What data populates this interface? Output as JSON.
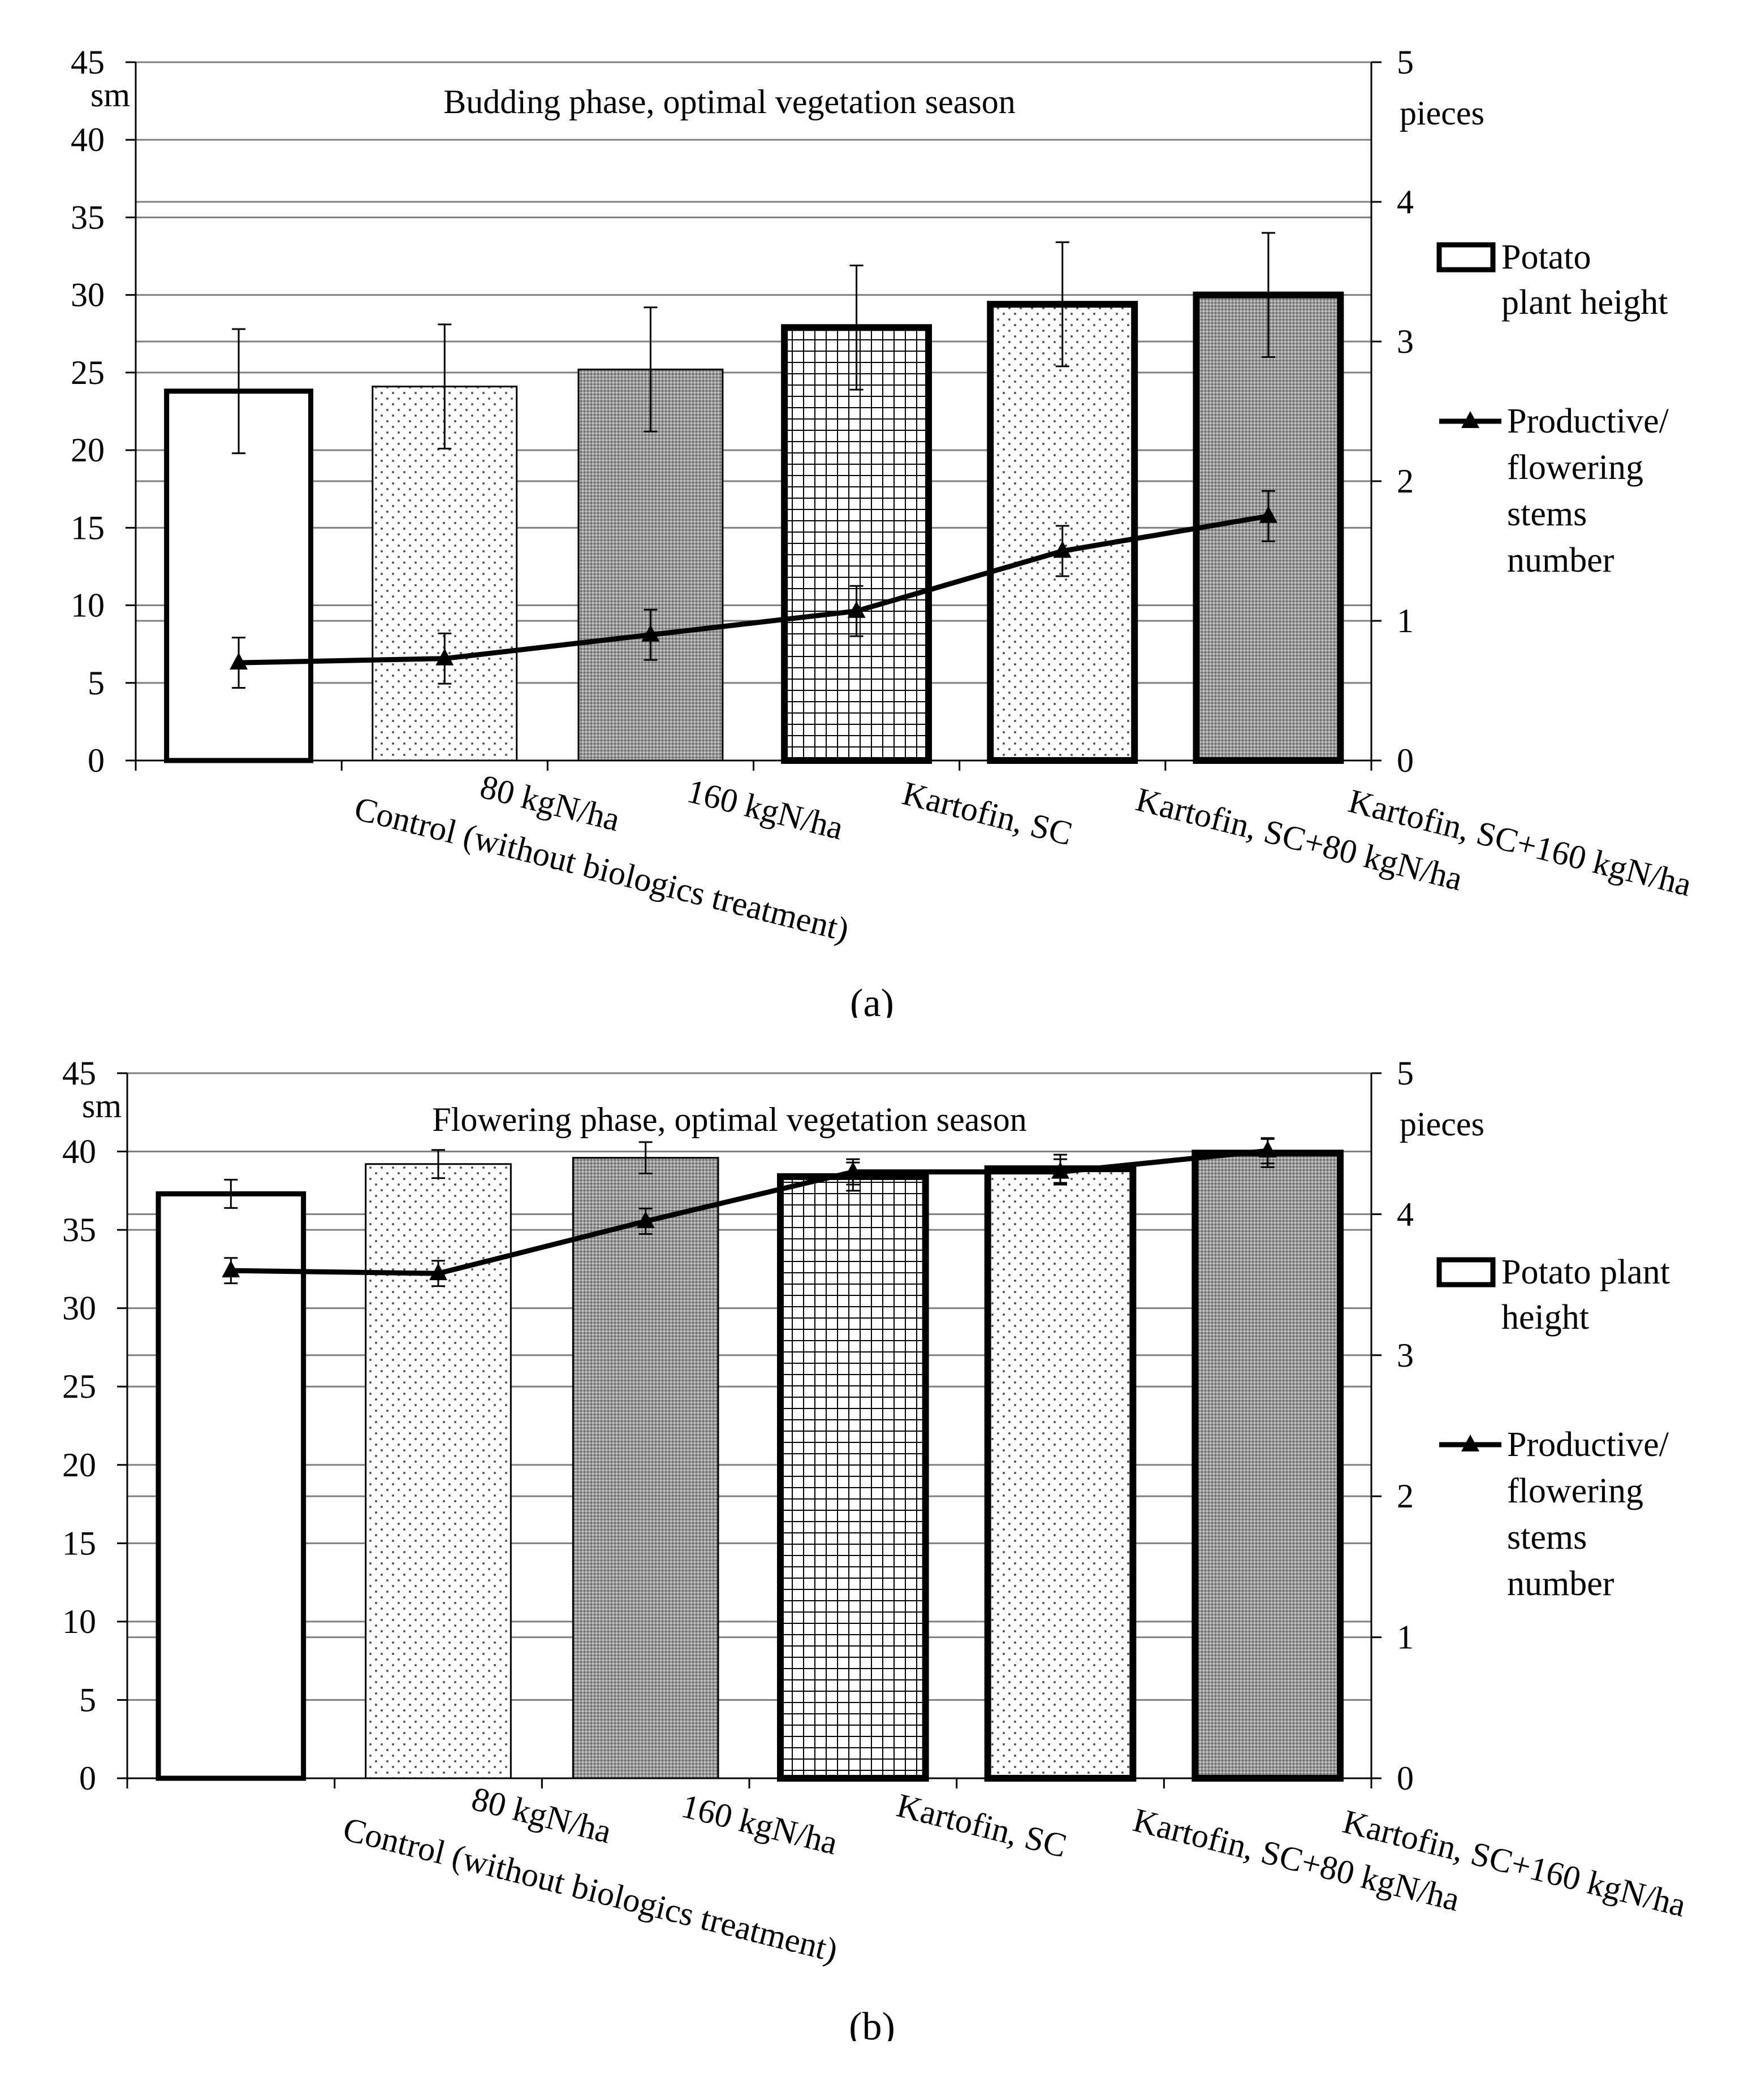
{
  "figure": {
    "category_labels": [
      "Control (without biologics treatment)",
      "80 kgN/ha",
      "160 kgN/ha",
      "Kartofin, SC",
      "Kartofin, SC+80 kgN/ha",
      "Kartofin, SC+160 kgN/ha"
    ]
  },
  "chart_data": [
    {
      "type": "bar",
      "panel_label": "(a)",
      "title": "Budding phase, optimal vegetation season",
      "ylabel": "sm",
      "y2label": "pieces",
      "ylim": [
        0,
        45
      ],
      "y2lim": [
        0,
        5
      ],
      "yticks": [
        "0",
        "5",
        "10",
        "15",
        "20",
        "25",
        "30",
        "35",
        "40",
        "45"
      ],
      "y2ticks": [
        "0",
        "1",
        "2",
        "3",
        "4",
        "5"
      ],
      "legend_position": "right",
      "legend": {
        "bar_label_lines": [
          "Potato",
          "plant height"
        ],
        "line_label_lines": [
          "Productive/",
          "flowering",
          "stems",
          "number"
        ]
      },
      "categories": [
        "Control (without biologics treatment)",
        "80 kgN/ha",
        "160 kgN/ha",
        "Kartofin, SC",
        "Kartofin, SC+80 kgN/ha",
        "Kartofin, SC+160 kgN/ha"
      ],
      "series": [
        {
          "name": "Potato plant height",
          "axis": "left",
          "kind": "bar",
          "values": [
            23.8,
            24.1,
            25.2,
            27.9,
            29.4,
            30.0
          ],
          "error": [
            4.0,
            4.0,
            4.0,
            4.0,
            4.0,
            4.0
          ]
        },
        {
          "name": "Productive/ flowering stems number",
          "axis": "right",
          "kind": "line",
          "values": [
            0.7,
            0.73,
            0.9,
            1.07,
            1.5,
            1.75
          ],
          "error": [
            0.18,
            0.18,
            0.18,
            0.18,
            0.18,
            0.18
          ]
        }
      ]
    },
    {
      "type": "bar",
      "panel_label": "(b)",
      "title": "Flowering phase, optimal vegetation season",
      "ylabel": "sm",
      "y2label": "pieces",
      "ylim": [
        0,
        45
      ],
      "y2lim": [
        0,
        5
      ],
      "yticks": [
        "0",
        "5",
        "10",
        "15",
        "20",
        "25",
        "30",
        "35",
        "40",
        "45"
      ],
      "y2ticks": [
        "0",
        "1",
        "2",
        "3",
        "4",
        "5"
      ],
      "legend_position": "right",
      "legend": {
        "bar_label_lines": [
          "Potato plant",
          "height"
        ],
        "line_label_lines": [
          "Productive/",
          "flowering",
          "stems",
          "number"
        ]
      },
      "categories": [
        "Control (without biologics treatment)",
        "80 kgN/ha",
        "160 kgN/ha",
        "Kartofin, SC",
        "Kartofin, SC+80 kgN/ha",
        "Kartofin, SC+160 kgN/ha"
      ],
      "series": [
        {
          "name": "Potato plant height",
          "axis": "left",
          "kind": "bar",
          "values": [
            37.3,
            39.2,
            39.6,
            38.4,
            38.9,
            39.9
          ],
          "error": [
            0.9,
            0.9,
            1.0,
            0.9,
            0.9,
            0.9
          ]
        },
        {
          "name": "Productive/ flowering stems number",
          "axis": "right",
          "kind": "line",
          "values": [
            3.6,
            3.58,
            3.95,
            4.3,
            4.3,
            4.45
          ],
          "error": [
            0.09,
            0.09,
            0.09,
            0.09,
            0.09,
            0.09
          ]
        }
      ]
    }
  ]
}
